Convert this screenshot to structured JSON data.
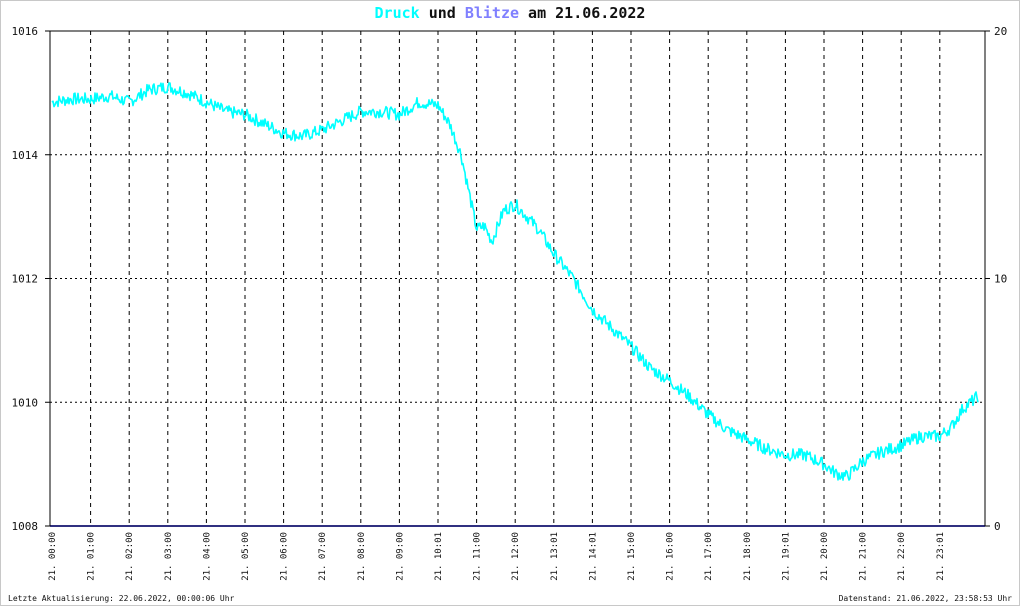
{
  "title": {
    "part1": "Druck",
    "part2": " und ",
    "part3": "Blitze",
    "part4": " am 21.06.2022",
    "color_druck": "#00ffff",
    "color_blitze": "#8080ff",
    "color_text": "#111111"
  },
  "footer": {
    "left": "Letzte Aktualisierung: 22.06.2022, 00:00:06 Uhr",
    "right": "Datenstand: 21.06.2022, 23:58:53 Uhr"
  },
  "chart_data": {
    "type": "line",
    "grid": true,
    "y_left": {
      "min": 1008,
      "max": 1016,
      "ticks": [
        "1016",
        "1014",
        "1012",
        "1010",
        "1008"
      ]
    },
    "y_right": {
      "min": 0,
      "max": 20,
      "ticks": [
        "20",
        "10",
        "0"
      ]
    },
    "x_ticks": [
      "21. 00:00",
      "21. 01:00",
      "21. 02:00",
      "21. 03:00",
      "21. 04:00",
      "21. 05:00",
      "21. 06:00",
      "21. 07:00",
      "21. 08:00",
      "21. 09:00",
      "21. 10:01",
      "21. 11:00",
      "21. 12:00",
      "21. 13:01",
      "21. 14:01",
      "21. 15:00",
      "21. 16:00",
      "21. 17:00",
      "21. 18:00",
      "21. 19:01",
      "21. 20:00",
      "21. 21:00",
      "21. 22:00",
      "21. 23:01"
    ],
    "series": [
      {
        "name": "Druck",
        "axis": "left",
        "color": "#00ffff",
        "x_hours": [
          0,
          0.5,
          1,
          1.5,
          2,
          2.5,
          3,
          3.5,
          4,
          4.5,
          5,
          5.5,
          6,
          6.5,
          7,
          7.5,
          8,
          8.5,
          9,
          9.5,
          10,
          10.3,
          10.6,
          10.8,
          11,
          11.2,
          11.4,
          11.7,
          12,
          12.3,
          12.6,
          13,
          13.5,
          14,
          14.5,
          15,
          15.5,
          16,
          16.5,
          17,
          17.5,
          18,
          18.5,
          19,
          19.5,
          20,
          20.3,
          20.6,
          21,
          21.5,
          22,
          22.5,
          23,
          23.3,
          23.6,
          24
        ],
        "values": [
          1014.85,
          1014.9,
          1014.9,
          1014.95,
          1014.85,
          1015.05,
          1015.1,
          1015.0,
          1014.85,
          1014.7,
          1014.65,
          1014.5,
          1014.35,
          1014.3,
          1014.4,
          1014.55,
          1014.7,
          1014.7,
          1014.65,
          1014.85,
          1014.8,
          1014.5,
          1014.0,
          1013.4,
          1012.8,
          1012.85,
          1012.6,
          1013.1,
          1013.2,
          1013.0,
          1012.8,
          1012.4,
          1012.0,
          1011.5,
          1011.2,
          1010.9,
          1010.55,
          1010.35,
          1010.1,
          1009.8,
          1009.55,
          1009.4,
          1009.25,
          1009.15,
          1009.15,
          1009.0,
          1008.85,
          1008.8,
          1009.05,
          1009.2,
          1009.3,
          1009.45,
          1009.45,
          1009.6,
          1009.9,
          1010.1
        ]
      },
      {
        "name": "Blitze",
        "axis": "right",
        "color": "#303080",
        "x_hours": [
          0,
          24
        ],
        "values": [
          0,
          0
        ]
      }
    ]
  }
}
